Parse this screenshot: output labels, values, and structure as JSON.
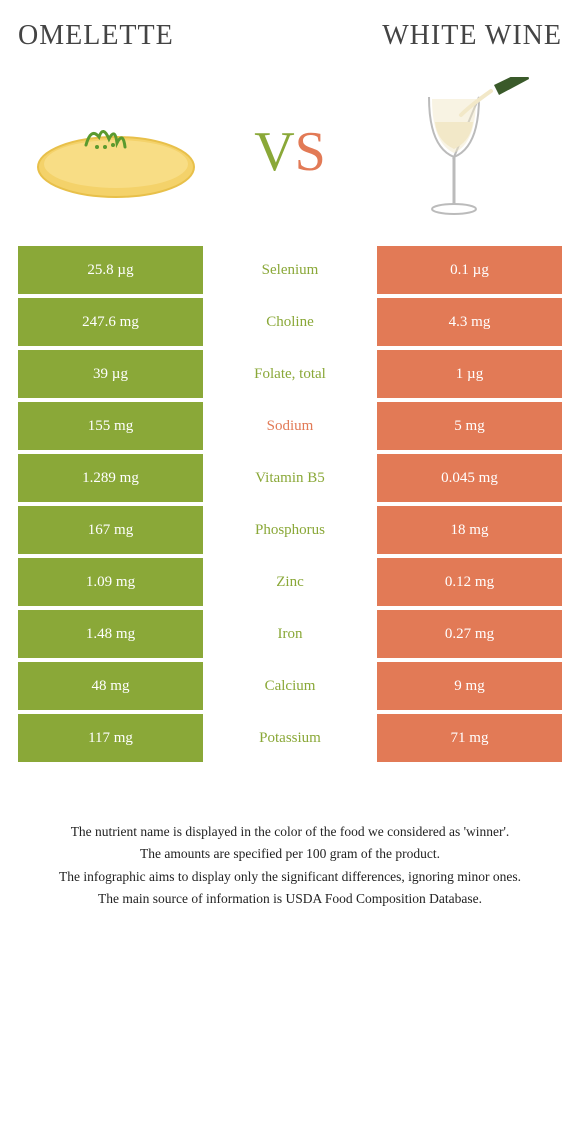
{
  "header": {
    "left_title": "Omelette",
    "right_title": "White wine"
  },
  "vs": {
    "v": "V",
    "s": "S"
  },
  "colors": {
    "left": "#8aa838",
    "right": "#e27a56",
    "omelette_fill": "#f4d26a",
    "omelette_edge": "#e8c04a",
    "parsley": "#5a9a2e",
    "wine_glass": "#cccccc",
    "wine_liquid": "#f2e8c8",
    "background": "#ffffff"
  },
  "table": {
    "type": "comparison-table",
    "rows": [
      {
        "left": "25.8 µg",
        "label": "Selenium",
        "right": "0.1 µg",
        "winner": "left"
      },
      {
        "left": "247.6 mg",
        "label": "Choline",
        "right": "4.3 mg",
        "winner": "left"
      },
      {
        "left": "39 µg",
        "label": "Folate, total",
        "right": "1 µg",
        "winner": "left"
      },
      {
        "left": "155 mg",
        "label": "Sodium",
        "right": "5 mg",
        "winner": "right"
      },
      {
        "left": "1.289 mg",
        "label": "Vitamin B5",
        "right": "0.045 mg",
        "winner": "left"
      },
      {
        "left": "167 mg",
        "label": "Phosphorus",
        "right": "18 mg",
        "winner": "left"
      },
      {
        "left": "1.09 mg",
        "label": "Zinc",
        "right": "0.12 mg",
        "winner": "left"
      },
      {
        "left": "1.48 mg",
        "label": "Iron",
        "right": "0.27 mg",
        "winner": "left"
      },
      {
        "left": "48 mg",
        "label": "Calcium",
        "right": "9 mg",
        "winner": "left"
      },
      {
        "left": "117 mg",
        "label": "Potassium",
        "right": "71 mg",
        "winner": "left"
      }
    ]
  },
  "footer": {
    "line1": "The nutrient name is displayed in the color of the food we considered as 'winner'.",
    "line2": "The amounts are specified per 100 gram of the product.",
    "line3": "The infographic aims to display only the significant differences, ignoring minor ones.",
    "line4": "The main source of information is USDA Food Composition Database."
  }
}
